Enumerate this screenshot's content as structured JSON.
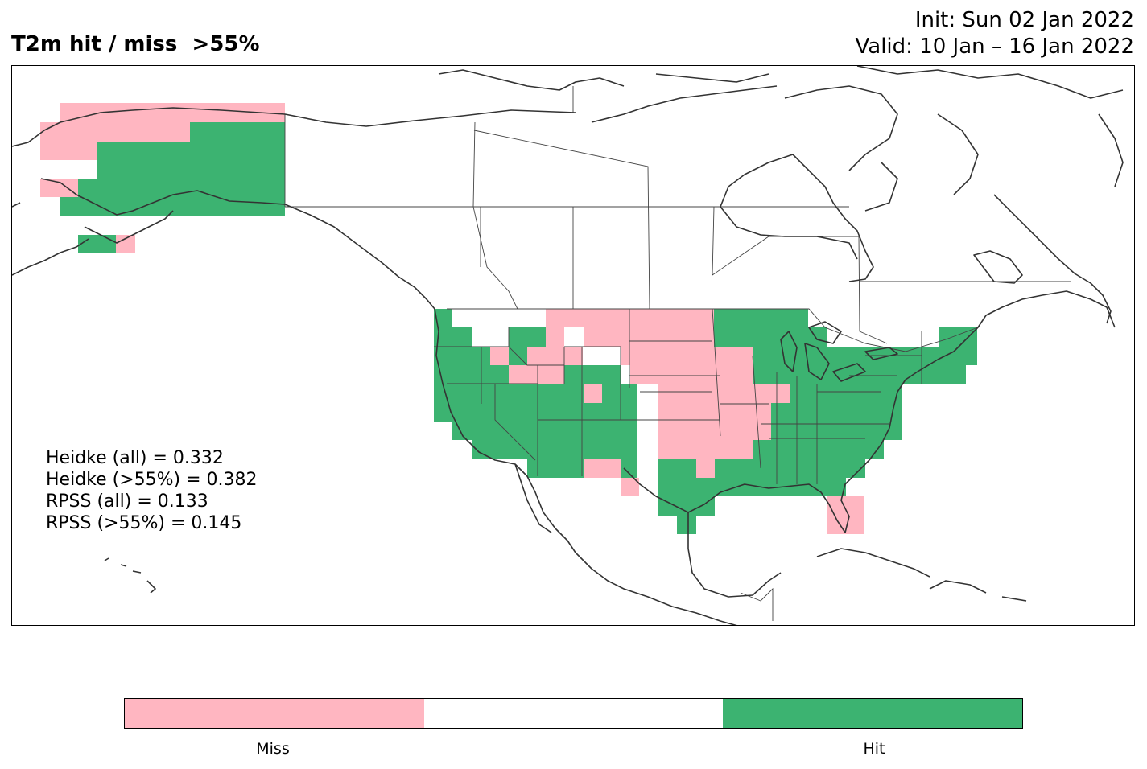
{
  "title": "T2m hit / miss  >55%",
  "init": "Init: Sun 02 Jan 2022",
  "valid": "Valid: 10 Jan – 16 Jan 2022",
  "stats": [
    "Heidke (all) = 0.332",
    "Heidke (>55%) = 0.382",
    "RPSS (all) = 0.133",
    "RPSS (>55%) = 0.145"
  ],
  "colorbar": {
    "categories": [
      "Miss",
      "",
      "Hit"
    ],
    "colors": [
      "#ffb6c1",
      "#ffffff",
      "#3cb371"
    ]
  },
  "legend": {
    "miss_label": "Miss",
    "hit_label": "Hit"
  },
  "colors": {
    "miss": "#ffb6c1",
    "hit": "#3cb371",
    "coastline": "#333333",
    "border": "#444444"
  }
}
